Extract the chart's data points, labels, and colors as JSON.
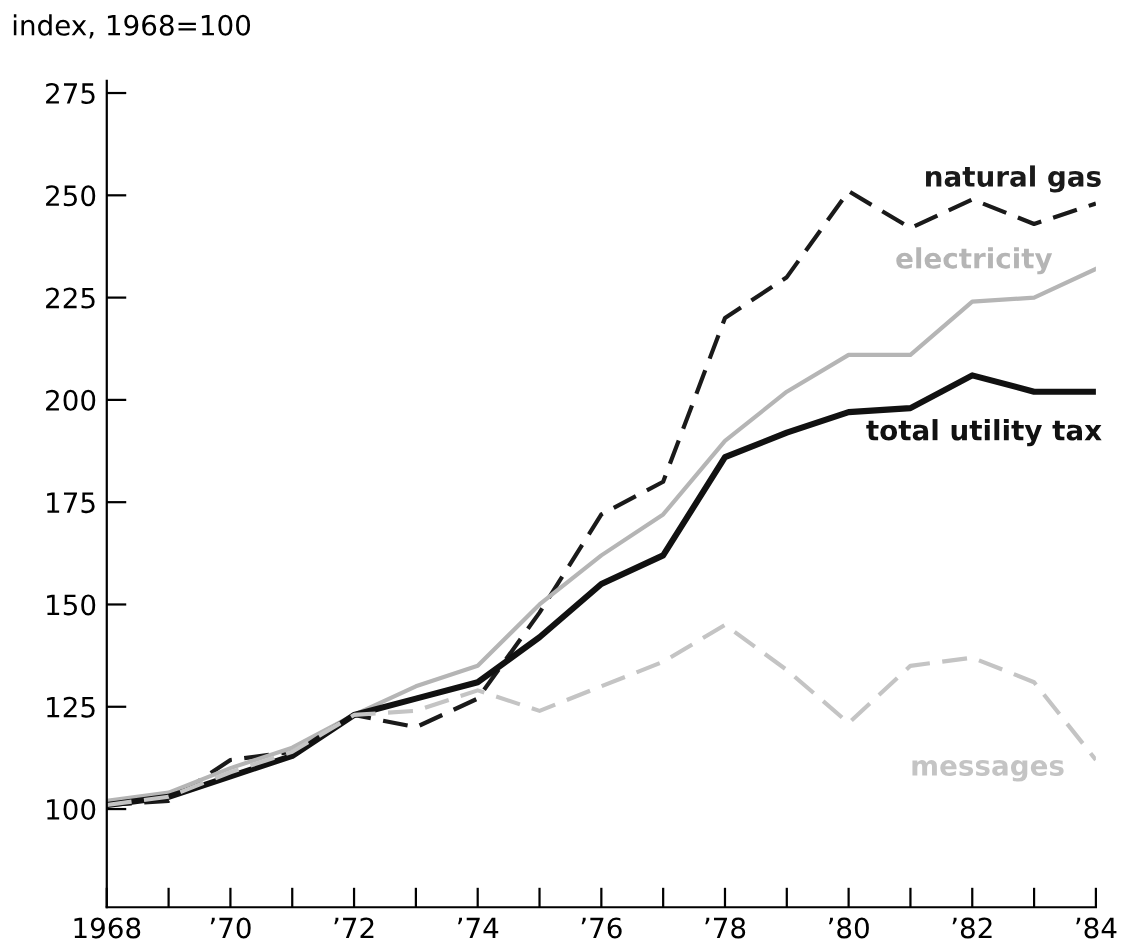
{
  "chart_data": {
    "type": "line",
    "ylabel": "index, 1968=100",
    "x": [
      1968,
      1969,
      1970,
      1971,
      1972,
      1973,
      1974,
      1975,
      1976,
      1977,
      1978,
      1979,
      1980,
      1981,
      1982,
      1983,
      1984
    ],
    "series": [
      {
        "name": "natural gas",
        "color": "#1a1a1a",
        "line_style": "dashed",
        "values": [
          101,
          102,
          112,
          114,
          123,
          120,
          127,
          148,
          172,
          180,
          220,
          230,
          251,
          242,
          249,
          243,
          248
        ]
      },
      {
        "name": "electricity",
        "color": "#b5b5b5",
        "line_style": "solid",
        "values": [
          102,
          104,
          110,
          115,
          123,
          130,
          135,
          150,
          162,
          172,
          190,
          202,
          211,
          211,
          224,
          225,
          232
        ]
      },
      {
        "name": "total utility tax",
        "color": "#111111",
        "line_style": "solid",
        "values": [
          101,
          103,
          108,
          113,
          123,
          127,
          131,
          142,
          155,
          162,
          186,
          192,
          197,
          198,
          206,
          202,
          202
        ]
      },
      {
        "name": "messages",
        "color": "#c4c4c4",
        "line_style": "dashed",
        "values": [
          101,
          103,
          109,
          114,
          123,
          124,
          129,
          124,
          130,
          136,
          145,
          134,
          121,
          135,
          137,
          131,
          112
        ]
      }
    ],
    "xlim": [
      1968,
      1984
    ],
    "ylim": [
      76,
      278
    ],
    "xticks": [
      {
        "value": 1968,
        "label": "1968"
      },
      {
        "value": 1969,
        "label": null
      },
      {
        "value": 1970,
        "label": "’70"
      },
      {
        "value": 1971,
        "label": null
      },
      {
        "value": 1972,
        "label": "’72"
      },
      {
        "value": 1973,
        "label": null
      },
      {
        "value": 1974,
        "label": "’74"
      },
      {
        "value": 1975,
        "label": null
      },
      {
        "value": 1976,
        "label": "’76"
      },
      {
        "value": 1977,
        "label": null
      },
      {
        "value": 1978,
        "label": "’78"
      },
      {
        "value": 1979,
        "label": null
      },
      {
        "value": 1980,
        "label": "’80"
      },
      {
        "value": 1981,
        "label": null
      },
      {
        "value": 1982,
        "label": "’82"
      },
      {
        "value": 1983,
        "label": null
      },
      {
        "value": 1984,
        "label": "’84"
      }
    ],
    "yticks": [
      100,
      125,
      150,
      175,
      200,
      225,
      250,
      275
    ],
    "grid": false,
    "legend": false,
    "marker": "none"
  }
}
